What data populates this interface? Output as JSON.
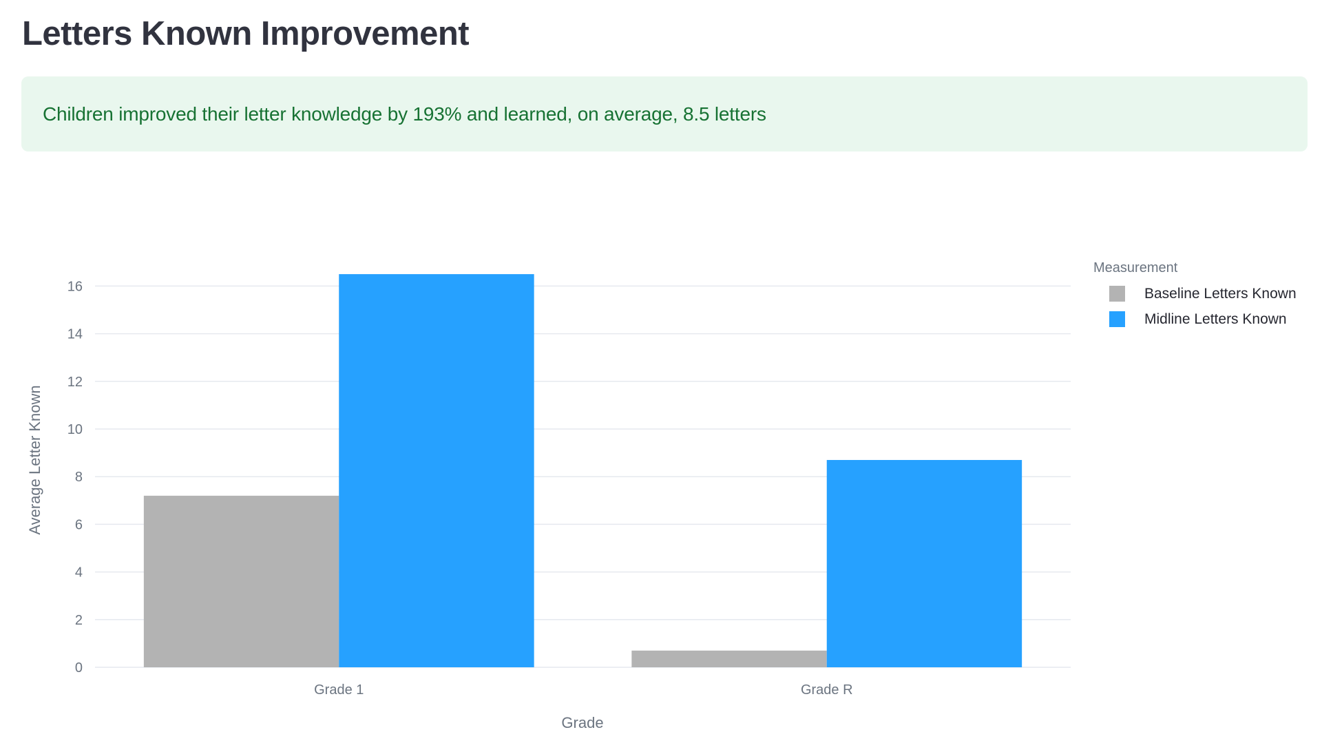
{
  "page": {
    "title": "Letters Known Improvement",
    "success_message": "Children improved their letter knowledge by 193% and learned, on average, 8.5 letters"
  },
  "colors": {
    "baseline": "#b3b3b3",
    "midline": "#26a1ff",
    "success_bg": "#e9f7ee",
    "success_text": "#177233",
    "title": "#31333f"
  },
  "legend": {
    "title": "Measurement",
    "items": [
      {
        "label": "Baseline Letters Known",
        "color": "#b3b3b3"
      },
      {
        "label": "Midline Letters Known",
        "color": "#26a1ff"
      }
    ]
  },
  "chart_data": {
    "type": "bar",
    "title": "Letters Known Improvement",
    "xlabel": "Grade",
    "ylabel": "Average Letter Known",
    "categories": [
      "Grade 1",
      "Grade R"
    ],
    "series": [
      {
        "name": "Baseline Letters Known",
        "color": "#b3b3b3",
        "values": [
          7.2,
          0.7
        ]
      },
      {
        "name": "Midline Letters Known",
        "color": "#26a1ff",
        "values": [
          16.5,
          8.7
        ]
      }
    ],
    "ylim": [
      0,
      17.37
    ],
    "yticks": [
      0,
      2,
      4,
      6,
      8,
      10,
      12,
      14,
      16
    ],
    "grid": true,
    "legend_position": "right",
    "barmode": "group",
    "legend_title": "Measurement"
  }
}
